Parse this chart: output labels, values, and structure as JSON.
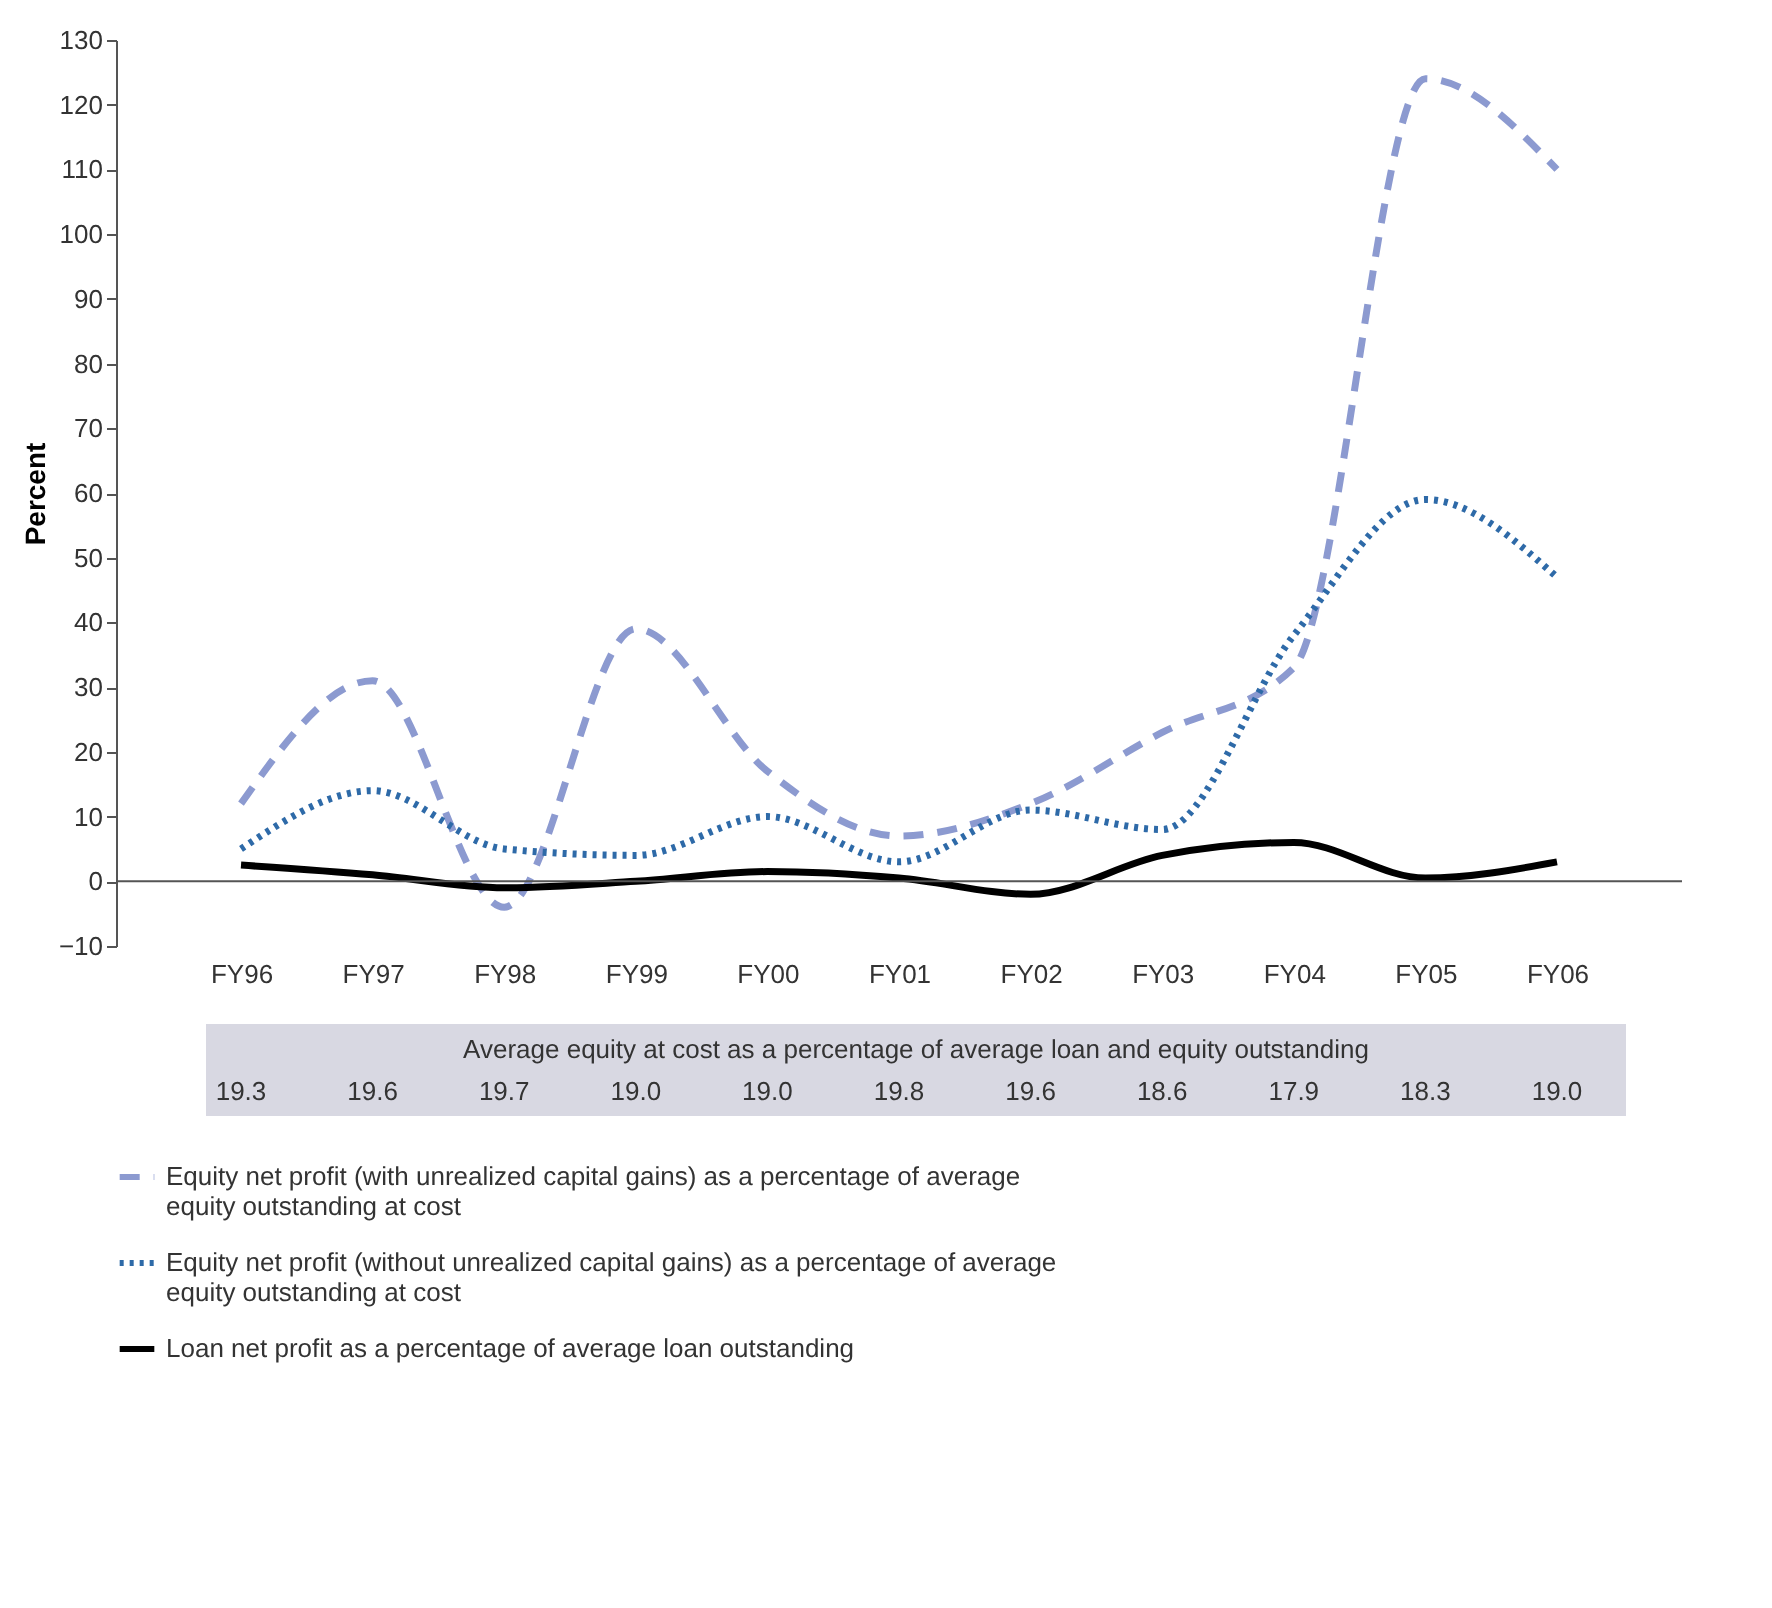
{
  "chart_data": {
    "type": "line",
    "ylabel": "Percent",
    "categories": [
      "FY96",
      "FY97",
      "FY98",
      "FY99",
      "FY00",
      "FY01",
      "FY02",
      "FY03",
      "FY04",
      "FY05",
      "FY06"
    ],
    "series": [
      {
        "name": "Equity net profit (with unrealized capital gains) as a percentage of average equity outstanding at cost",
        "color": "#8c9ad0",
        "line_style": "dashed",
        "values": [
          12,
          31,
          -4,
          39,
          17,
          7,
          12,
          23,
          33,
          124,
          110
        ]
      },
      {
        "name": "Equity net profit (without unrealized capital gains) as a percentage of average equity outstanding at cost",
        "color": "#2e6aa8",
        "line_style": "dotted",
        "values": [
          5,
          14,
          5,
          4,
          10,
          3,
          11,
          8,
          38,
          59,
          47
        ]
      },
      {
        "name": "Loan net profit as a percentage of average loan outstanding",
        "color": "#000000",
        "line_style": "solid",
        "values": [
          2.5,
          1,
          -1,
          0,
          1.5,
          0.5,
          -2,
          4,
          6,
          0.5,
          3
        ]
      }
    ],
    "ylim": [
      -10,
      130
    ],
    "yticks": [
      -10,
      0,
      10,
      20,
      30,
      40,
      50,
      60,
      70,
      80,
      90,
      100,
      110,
      120,
      130
    ],
    "ref_lines": [
      {
        "axis": "y",
        "value": 0
      }
    ],
    "annotations": [
      "Average equity at cost as a percentage of average loan and equity outstanding",
      "19.3",
      "19.6",
      "19.7",
      "19.0",
      "19.0",
      "19.8",
      "19.6",
      "18.6",
      "17.9",
      "18.3",
      "19.0"
    ],
    "grid": false,
    "marker": "none",
    "legend": "bottom"
  }
}
